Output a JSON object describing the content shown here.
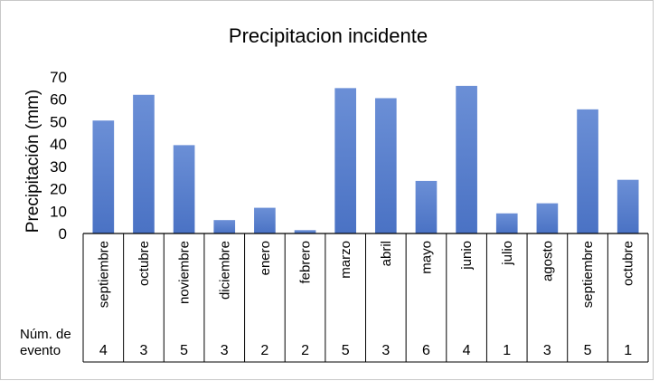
{
  "chart_data": {
    "type": "bar",
    "title": "Precipitacion incidente",
    "ylabel": "Precipitación (mm)",
    "xlabel": "",
    "ylim": [
      0,
      70
    ],
    "yticks": [
      "0",
      "10",
      "20",
      "30",
      "40",
      "50",
      "60",
      "70"
    ],
    "grid": false,
    "bar_color": "#4a72c4",
    "categories": [
      "septiembre",
      "octubre",
      "noviembre",
      "diciembre",
      "enero",
      "febrero",
      "marzo",
      "abril",
      "mayo",
      "junio",
      "julio",
      "agosto",
      "septiembre",
      "octubre"
    ],
    "values": [
      50.5,
      62,
      39.5,
      6,
      11.5,
      1.5,
      65,
      60.5,
      23.5,
      66,
      9,
      13.5,
      55.5,
      24
    ],
    "event_row": {
      "label_line1": "Núm. de",
      "label_line2": "evento",
      "values": [
        "4",
        "3",
        "5",
        "3",
        "2",
        "2",
        "5",
        "3",
        "6",
        "4",
        "1",
        "3",
        "5",
        "1"
      ]
    }
  }
}
